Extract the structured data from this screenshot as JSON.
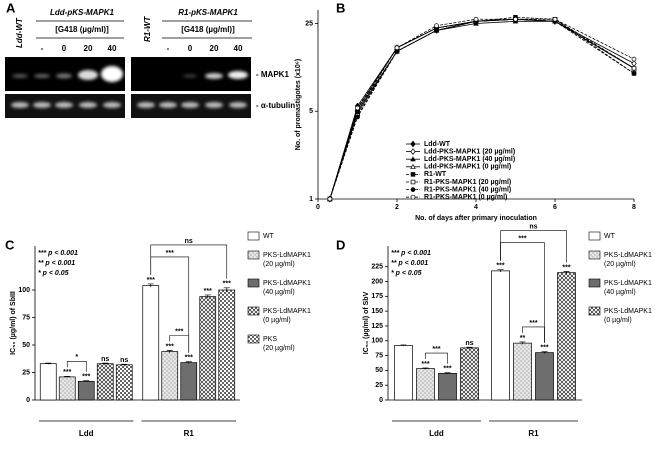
{
  "panel_a": {
    "panel_label": "A",
    "left": {
      "strain": "Ldd-WT",
      "construct": "Ldd-pKS-MAPK1",
      "condition": "[G418 (µg/ml)]",
      "lanes": [
        "-",
        "0",
        "20",
        "40"
      ]
    },
    "right": {
      "strain": "R1-WT",
      "construct": "R1-pKS-MAPK1",
      "condition": "[G418 (µg/ml)]",
      "lanes": [
        "-",
        "0",
        "20",
        "40"
      ]
    },
    "rows": [
      "- MAPK1",
      "- α-tubulin"
    ]
  },
  "chart_data": [
    {
      "type": "line",
      "panel_label": "B",
      "xlabel": "No. of days after primary inoculation",
      "ylabel": "No. of promastigotes (x10⁶)",
      "x": [
        0.3,
        1,
        2,
        3,
        4,
        5,
        6,
        8
      ],
      "xlim": [
        0,
        8
      ],
      "xticks": [
        0,
        2,
        4,
        6,
        8
      ],
      "ylim": [
        1,
        32
      ],
      "yticks": [
        1,
        5,
        25
      ],
      "log_y": true,
      "series": [
        {
          "name": "Ldd-WT",
          "color": "#000000",
          "marker": "diamond",
          "filled": true,
          "dashed": false,
          "values": [
            1,
            5.5,
            16,
            23,
            26,
            27,
            26,
            11
          ]
        },
        {
          "name": "Ldd-PKS-MAPK1 (20 µg/ml)",
          "color": "#000000",
          "marker": "diamond",
          "filled": false,
          "dashed": false,
          "values": [
            1,
            5,
            15,
            22,
            26,
            27,
            26,
            12
          ]
        },
        {
          "name": "Ldd-PKS-MAPK1 (40 µg/ml)",
          "color": "#000000",
          "marker": "triangle",
          "filled": true,
          "dashed": false,
          "values": [
            1,
            4.8,
            15,
            22,
            25,
            26,
            26,
            11
          ]
        },
        {
          "name": "Ldd-PKS-MAPK1 (0 µg/ml)",
          "color": "#000000",
          "marker": "triangle",
          "filled": false,
          "dashed": false,
          "values": [
            1,
            5.2,
            16,
            23,
            26,
            27,
            26,
            11
          ]
        },
        {
          "name": "R1-WT",
          "color": "#000000",
          "marker": "square",
          "filled": true,
          "dashed": true,
          "values": [
            1,
            5,
            16,
            23,
            26,
            28,
            27,
            10
          ]
        },
        {
          "name": "R1-PKS-MAPK1 (20 µg/ml)",
          "color": "#000000",
          "marker": "square",
          "filled": false,
          "dashed": true,
          "values": [
            1,
            4.6,
            15,
            22,
            26,
            27,
            27,
            11
          ]
        },
        {
          "name": "R1-PKS-MAPK1 (40 µg/ml)",
          "color": "#000000",
          "marker": "circle",
          "filled": true,
          "dashed": true,
          "values": [
            1,
            4.5,
            15,
            22,
            26,
            27,
            26,
            10
          ]
        },
        {
          "name": "R1-PKS-MAPK1 (0 µg/ml)",
          "color": "#000000",
          "marker": "circle",
          "filled": false,
          "dashed": true,
          "values": [
            1,
            5.3,
            16,
            24,
            27,
            27,
            27,
            13
          ]
        }
      ]
    },
    {
      "type": "bar",
      "panel_label": "C",
      "ylabel": "IC₅₀ (µg/ml) of SbIII",
      "categories": [
        "Ldd",
        "R1"
      ],
      "ylim": [
        0,
        140
      ],
      "yticks": [
        0,
        25,
        50,
        75,
        100
      ],
      "pvalues": [
        "*** p < 0.001",
        "** p < 0.001",
        "* p < 0.05"
      ],
      "series": [
        {
          "name": "WT",
          "color": "#ffffff",
          "pattern": null,
          "values": [
            33,
            104
          ],
          "errors": [
            0.5,
            1.5
          ],
          "annotations": [
            null,
            "***"
          ]
        },
        {
          "name": "PKS-LdMAPK1 (20 µg/ml)",
          "color": "#e6e6e6",
          "pattern": "dots",
          "values": [
            21,
            44
          ],
          "errors": [
            0.5,
            1
          ],
          "annotations": [
            "***",
            "***"
          ]
        },
        {
          "name": "PKS-LdMAPK1 (40 µg/ml)",
          "color": "#6e6e6e",
          "pattern": null,
          "values": [
            17,
            34
          ],
          "errors": [
            0.5,
            0.8
          ],
          "annotations": [
            "***",
            "***"
          ]
        },
        {
          "name": "PKS-LdMAPK1 (0 µg/ml)",
          "color": "#ffffff",
          "pattern": "crosshatch",
          "values": [
            33,
            94
          ],
          "errors": [
            0.5,
            1.5
          ],
          "annotations": [
            "ns",
            "***"
          ]
        },
        {
          "name": "PKS (20 µg/ml)",
          "color": "#ffffff",
          "pattern": "checker",
          "values": [
            32,
            100
          ],
          "errors": [
            0.5,
            2
          ],
          "annotations": [
            "ns",
            "***"
          ]
        }
      ],
      "brackets": [
        {
          "category": 0,
          "from": 1,
          "to": 2,
          "text": "*"
        },
        {
          "category": 1,
          "from": 0,
          "to": 4,
          "text": "ns"
        },
        {
          "category": 1,
          "from": 0,
          "to": 2,
          "text": "***"
        },
        {
          "category": 1,
          "from": 1,
          "to": 2,
          "text": "***"
        }
      ]
    },
    {
      "type": "bar",
      "panel_label": "D",
      "ylabel": "IC₅₀ (µg/ml) of SbV",
      "categories": [
        "Ldd",
        "R1"
      ],
      "ylim": [
        0,
        260
      ],
      "yticks": [
        0,
        25,
        50,
        75,
        100,
        125,
        150,
        175,
        200,
        225
      ],
      "pvalues": [
        "*** p < 0.001",
        "** p < 0.001",
        "* p < 0.05"
      ],
      "series": [
        {
          "name": "WT",
          "color": "#ffffff",
          "pattern": null,
          "values": [
            92,
            218
          ],
          "errors": [
            1,
            2
          ],
          "annotations": [
            null,
            "***"
          ]
        },
        {
          "name": "PKS-LdMAPK1 (20 µg/ml)",
          "color": "#e6e6e6",
          "pattern": "dots",
          "values": [
            53,
            96
          ],
          "errors": [
            1,
            2
          ],
          "annotations": [
            "***",
            "**"
          ]
        },
        {
          "name": "PKS-LdMAPK1 (40 µg/ml)",
          "color": "#6e6e6e",
          "pattern": null,
          "values": [
            45,
            80
          ],
          "errors": [
            1,
            1.5
          ],
          "annotations": [
            "***",
            "***"
          ]
        },
        {
          "name": "PKS-LdMAPK1 (0 µg/ml)",
          "color": "#ffffff",
          "pattern": "crosshatch",
          "values": [
            88,
            215
          ],
          "errors": [
            1,
            2
          ],
          "annotations": [
            "ns",
            "***"
          ]
        }
      ],
      "brackets": [
        {
          "category": 0,
          "from": 1,
          "to": 2,
          "text": "***"
        },
        {
          "category": 1,
          "from": 0,
          "to": 3,
          "text": "ns"
        },
        {
          "category": 1,
          "from": 0,
          "to": 2,
          "text": "***"
        },
        {
          "category": 1,
          "from": 1,
          "to": 2,
          "text": "***"
        }
      ]
    }
  ]
}
